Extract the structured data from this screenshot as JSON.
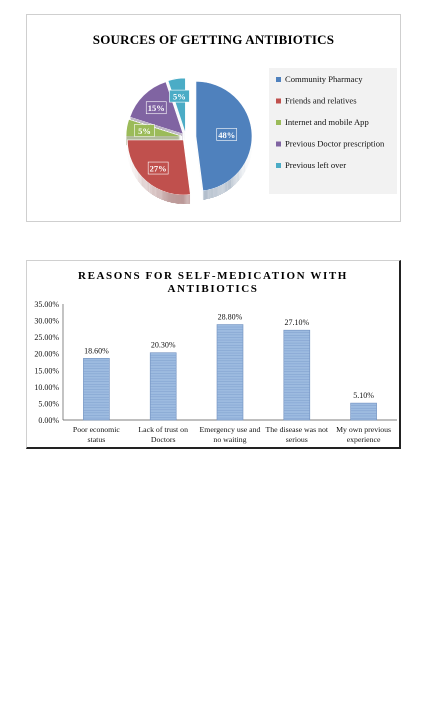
{
  "charts": [
    {
      "type": "pie",
      "title": "SOURCES OF GETTING ANTIBIOTICS",
      "legend_position": "right",
      "slices": [
        {
          "label": "Community Pharmacy",
          "value": 48,
          "value_label": "48%",
          "color": "#4f81bd"
        },
        {
          "label": "Friends and relatives",
          "value": 27,
          "value_label": "27%",
          "color": "#c0504d"
        },
        {
          "label": "Internet and mobile App",
          "value": 5,
          "value_label": "5%",
          "color": "#9bbb59"
        },
        {
          "label": "Previous Doctor prescription",
          "value": 15,
          "value_label": "15%",
          "color": "#8064a2"
        },
        {
          "label": "Previous left over",
          "value": 5,
          "value_label": "5%",
          "color": "#4bacc6"
        }
      ]
    },
    {
      "type": "bar",
      "title": "REASONS FOR SELF-MEDICATION WITH ANTIBIOTICS",
      "categories": [
        [
          "Poor economic",
          "status"
        ],
        [
          "Lack of trust on",
          "Doctors"
        ],
        [
          "Emergency use and",
          "no waiting"
        ],
        [
          "The disease was not",
          "serious"
        ],
        [
          "My own previous",
          "experience"
        ]
      ],
      "values": [
        18.6,
        20.3,
        28.8,
        27.1,
        5.1
      ],
      "value_labels": [
        "18.60%",
        "20.30%",
        "28.80%",
        "27.10%",
        "5.10%"
      ],
      "ylim": [
        0,
        35
      ],
      "yticks": [
        "0.00%",
        "5.00%",
        "10.00%",
        "15.00%",
        "20.00%",
        "25.00%",
        "30.00%",
        "35.00%"
      ],
      "bar_color": "#9dbbe0",
      "grid": false
    }
  ]
}
